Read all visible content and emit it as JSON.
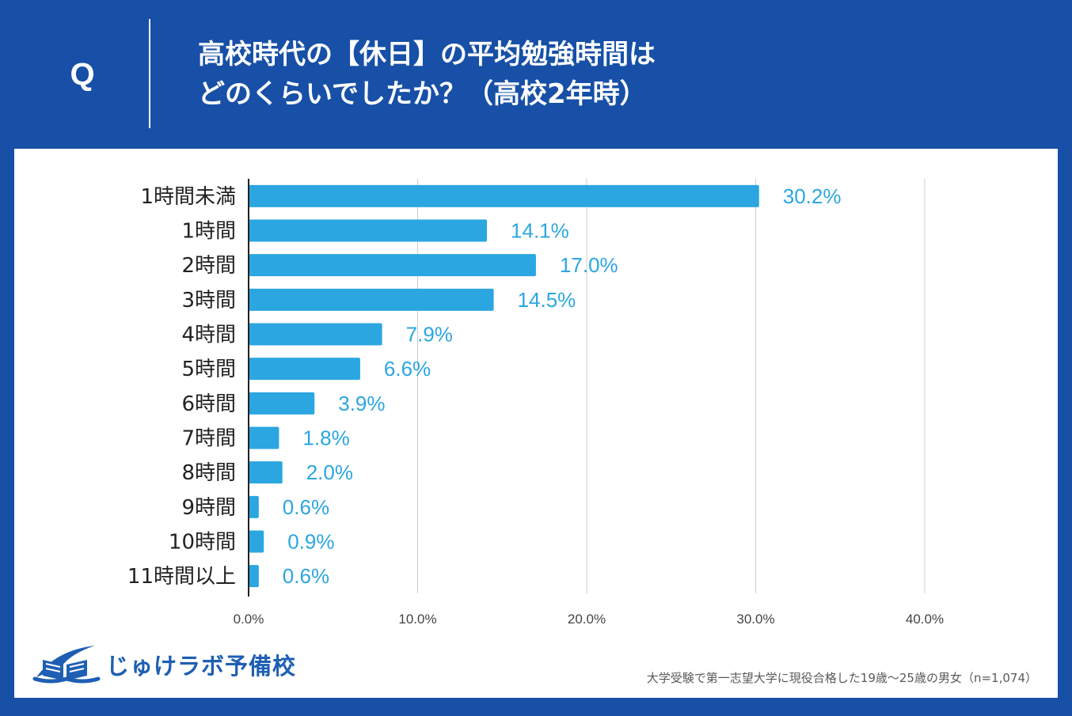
{
  "question": {
    "label": "Q",
    "title_line1": "高校時代の【休日】の平均勉強時間は",
    "title_line2": "どのくらいでしたか？（高校2年時）"
  },
  "chart_data": {
    "type": "bar",
    "orientation": "horizontal",
    "categories": [
      "1時間未満",
      "1時間",
      "2時間",
      "3時間",
      "4時間",
      "5時間",
      "6時間",
      "7時間",
      "8時間",
      "9時間",
      "10時間",
      "11時間以上"
    ],
    "values": [
      30.2,
      14.1,
      17.0,
      14.5,
      7.9,
      6.6,
      3.9,
      1.8,
      2.0,
      0.6,
      0.9,
      0.6
    ],
    "value_labels": [
      "30.2%",
      "14.1%",
      "17.0%",
      "14.5%",
      "7.9%",
      "6.6%",
      "3.9%",
      "1.8%",
      "2.0%",
      "0.6%",
      "0.9%",
      "0.6%"
    ],
    "xlim": [
      0,
      40
    ],
    "xticks": [
      0,
      10,
      20,
      30,
      40
    ],
    "xtick_labels": [
      "0.0%",
      "10.0%",
      "20.0%",
      "30.0%",
      "40.0%"
    ],
    "grid": true,
    "bar_color": "#2ba6e0",
    "label_color": "#2ba6e0"
  },
  "logo": {
    "text": "じゅけラボ予備校",
    "icon": "book-icon"
  },
  "footnote": "大学受験で第一志望大学に現役合格した19歳〜25歳の男女（n=1,074）",
  "colors": {
    "background": "#1750a6",
    "panel": "#ffffff",
    "logo": "#1e5fb4"
  }
}
